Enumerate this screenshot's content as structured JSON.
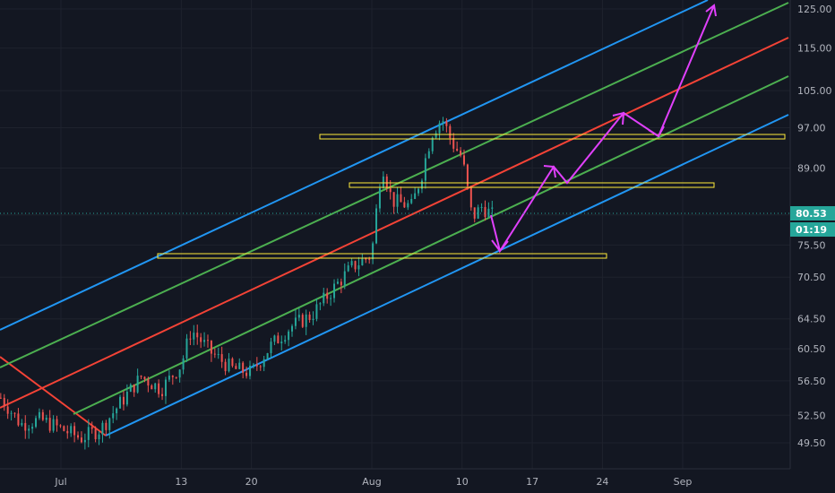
{
  "chart_data": {
    "type": "candlestick",
    "y_axis": {
      "scale": "log",
      "ticks": [
        "125.00",
        "115.00",
        "105.00",
        "97.00",
        "89.00",
        "80.53",
        "75.50",
        "70.50",
        "64.50",
        "60.50",
        "56.50",
        "52.50",
        "49.50"
      ]
    },
    "x_axis": {
      "ticks": [
        "Jul",
        "13",
        "20",
        "Aug",
        "10",
        "17",
        "24",
        "Sep"
      ]
    },
    "current_price": {
      "label": "80.53",
      "color": "#26a69a"
    },
    "countdown": {
      "label": "01:19",
      "color": "#26a69a"
    },
    "candles": [
      {
        "x": "Jun 25",
        "close": 54.5
      },
      {
        "x": "Jun 27",
        "close": 51.5
      },
      {
        "x": "Jun 29",
        "close": 52.0
      },
      {
        "x": "Jul 1",
        "close": 51.0
      },
      {
        "x": "Jul 3",
        "close": 50.0
      },
      {
        "x": "Jul 5",
        "close": 51.0
      },
      {
        "x": "Jul 7",
        "close": 54.0
      },
      {
        "x": "Jul 9",
        "close": 57.0
      },
      {
        "x": "Jul 11",
        "close": 55.5
      },
      {
        "x": "Jul 13",
        "close": 58.5
      },
      {
        "x": "Jul 14",
        "close": 63.0
      },
      {
        "x": "Jul 16",
        "close": 60.0
      },
      {
        "x": "Jul 18",
        "close": 58.0
      },
      {
        "x": "Jul 20",
        "close": 57.5
      },
      {
        "x": "Jul 22",
        "close": 61.0
      },
      {
        "x": "Jul 24",
        "close": 63.5
      },
      {
        "x": "Jul 26",
        "close": 65.0
      },
      {
        "x": "Jul 28",
        "close": 68.5
      },
      {
        "x": "Jul 30",
        "close": 72.0
      },
      {
        "x": "Aug 1",
        "close": 74.0
      },
      {
        "x": "Aug 2",
        "close": 90.0
      },
      {
        "x": "Aug 3",
        "close": 83.0
      },
      {
        "x": "Aug 5",
        "close": 82.0
      },
      {
        "x": "Aug 6",
        "close": 88.0
      },
      {
        "x": "Aug 7",
        "close": 96.0
      },
      {
        "x": "Aug 8",
        "close": 99.0
      },
      {
        "x": "Aug 9",
        "close": 94.0
      },
      {
        "x": "Aug 10",
        "close": 91.0
      },
      {
        "x": "Aug 11",
        "close": 80.0
      },
      {
        "x": "Aug 12",
        "close": 82.0
      },
      {
        "x": "Aug 13",
        "close": 80.5
      }
    ],
    "colors": {
      "up": "#26a69a",
      "down": "#ef5350",
      "outer_lines": "#2196f3",
      "inner_lines": "#4caf50",
      "median_line": "#f44336",
      "zones": "#ffeb3b",
      "projection": "#e040fb"
    }
  }
}
